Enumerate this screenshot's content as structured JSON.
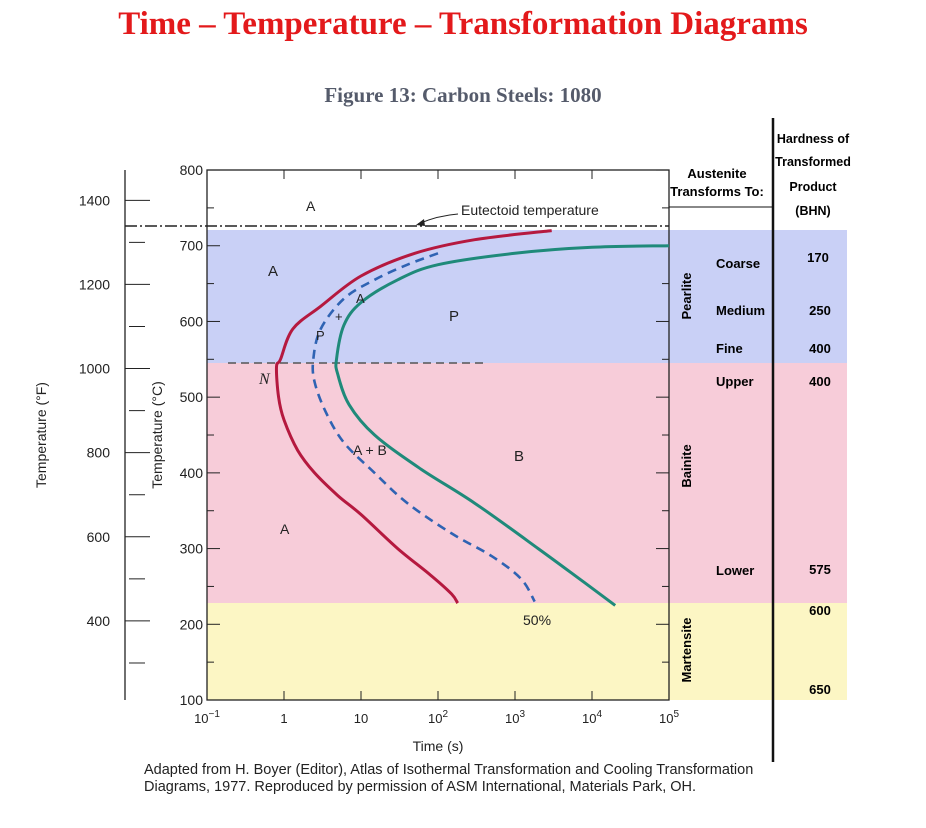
{
  "title": "Time – Temperature – Transformation Diagrams",
  "figure_title": "Figure 13: Carbon Steels: 1080",
  "caption": "Adapted from H. Boyer (Editor), Atlas of Isothermal Transformation and Cooling Transformation Diagrams, 1977. Reproduced by permission of ASM International, Materials Park, OH.",
  "colors": {
    "title": "#e3191b",
    "pearlite_band": "#c9d0f6",
    "bainite_band": "#f7ccd9",
    "martensite_band": "#fcf6c4",
    "start_curve": "#b5193f",
    "fifty_curve": "#2f63b3",
    "finish_curve": "#1f8a7a"
  },
  "chart_data": {
    "type": "line",
    "xlabel": "Time (s)",
    "ylabel_left": "Temperature (°F)",
    "ylabel_right": "Temperature (°C)",
    "x_scale": "log",
    "xlim": [
      0.1,
      100000
    ],
    "ylim_c": [
      100,
      800
    ],
    "x_ticks": [
      "10−1",
      "1",
      "10",
      "102",
      "103",
      "104",
      "105"
    ],
    "y_ticks_c": [
      "100",
      "200",
      "300",
      "400",
      "500",
      "600",
      "700",
      "800"
    ],
    "y_ticks_f": [
      "400",
      "600",
      "800",
      "1000",
      "1200",
      "1400"
    ],
    "eutectoid_label": "Eutectoid temperature",
    "eutectoid_temp_c": 727,
    "series": [
      {
        "id": "start",
        "points": [
          [
            3000,
            720
          ],
          [
            300,
            708
          ],
          [
            50,
            690
          ],
          [
            10,
            660
          ],
          [
            3,
            620
          ],
          [
            1.3,
            590
          ],
          [
            0.9,
            550
          ],
          [
            0.8,
            540
          ],
          [
            0.85,
            500
          ],
          [
            1,
            470
          ],
          [
            1.5,
            430
          ],
          [
            2.5,
            400
          ],
          [
            5,
            370
          ],
          [
            10,
            345
          ],
          [
            30,
            300
          ],
          [
            80,
            265
          ],
          [
            150,
            240
          ],
          [
            180,
            228
          ]
        ]
      },
      {
        "id": "fifty",
        "label": "50%",
        "points": [
          [
            100,
            690
          ],
          [
            40,
            675
          ],
          [
            15,
            655
          ],
          [
            6,
            630
          ],
          [
            3,
            590
          ],
          [
            2.4,
            550
          ],
          [
            2.5,
            520
          ],
          [
            3.5,
            480
          ],
          [
            6,
            440
          ],
          [
            15,
            400
          ],
          [
            40,
            360
          ],
          [
            150,
            320
          ],
          [
            500,
            290
          ],
          [
            1200,
            260
          ],
          [
            1800,
            230
          ]
        ]
      },
      {
        "id": "finish",
        "points": [
          [
            100000,
            700
          ],
          [
            10000,
            698
          ],
          [
            1000,
            690
          ],
          [
            100,
            675
          ],
          [
            30,
            655
          ],
          [
            10,
            625
          ],
          [
            6,
            595
          ],
          [
            4.8,
            550
          ],
          [
            5,
            530
          ],
          [
            7,
            490
          ],
          [
            15,
            450
          ],
          [
            60,
            405
          ],
          [
            300,
            360
          ],
          [
            2000,
            300
          ],
          [
            8000,
            255
          ],
          [
            20000,
            225
          ]
        ]
      }
    ],
    "region_labels": [
      "A",
      "A",
      "P",
      "A",
      "P",
      "N",
      "A + B",
      "B",
      "A"
    ],
    "legend_header": [
      "Austenite",
      "Transforms To:"
    ],
    "hardness_header": [
      "Hardness of",
      "Transformed",
      "Product",
      "(BHN)"
    ],
    "products": [
      {
        "phase": "Pearlite",
        "rows": [
          {
            "type": "Coarse",
            "bhn": "170"
          },
          {
            "type": "Medium",
            "bhn": "250"
          },
          {
            "type": "Fine",
            "bhn": "400"
          }
        ]
      },
      {
        "phase": "Bainite",
        "rows": [
          {
            "type": "Upper",
            "bhn": "400"
          },
          {
            "type": "Lower",
            "bhn": "575"
          }
        ]
      },
      {
        "phase": "Martensite",
        "rows": [
          {
            "type": "",
            "bhn": "600"
          },
          {
            "type": "",
            "bhn": "650"
          }
        ]
      }
    ]
  }
}
